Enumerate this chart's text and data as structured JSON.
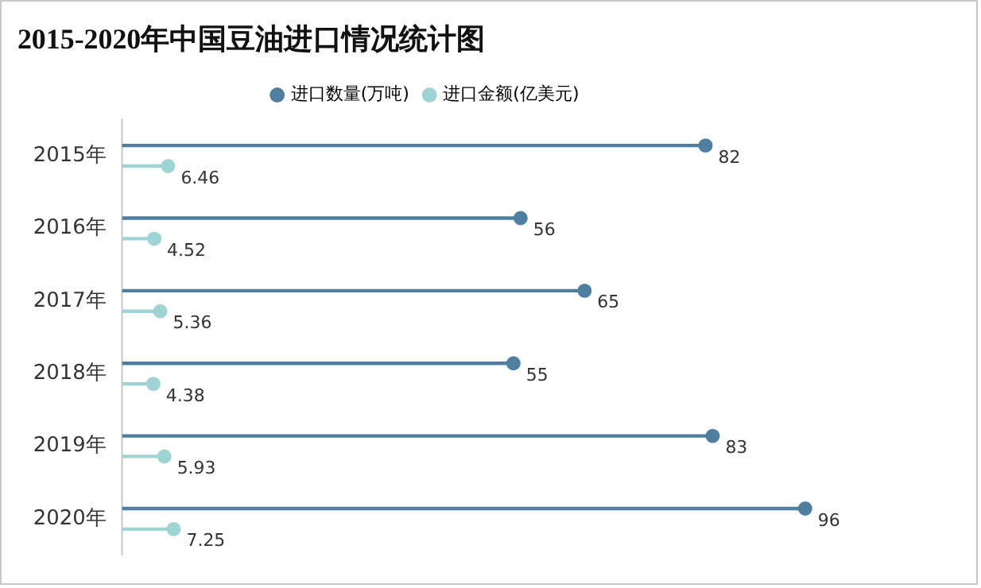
{
  "chart_data": {
    "type": "lollipop",
    "orientation": "horizontal",
    "title": "2015-2020年中国豆油进口情况统计图",
    "categories": [
      "2015年",
      "2016年",
      "2017年",
      "2018年",
      "2019年",
      "2020年"
    ],
    "series": [
      {
        "name": "进口数量(万吨)",
        "color": "#4f7fa0",
        "values": [
          82,
          56,
          65,
          55,
          83,
          96
        ]
      },
      {
        "name": "进口金额(亿美元)",
        "color": "#9fd4d4",
        "values": [
          6.46,
          4.52,
          5.36,
          4.38,
          5.93,
          7.25
        ]
      }
    ],
    "tick_labels": "y",
    "data_labels": true,
    "legend": "top",
    "marker": "circle"
  }
}
